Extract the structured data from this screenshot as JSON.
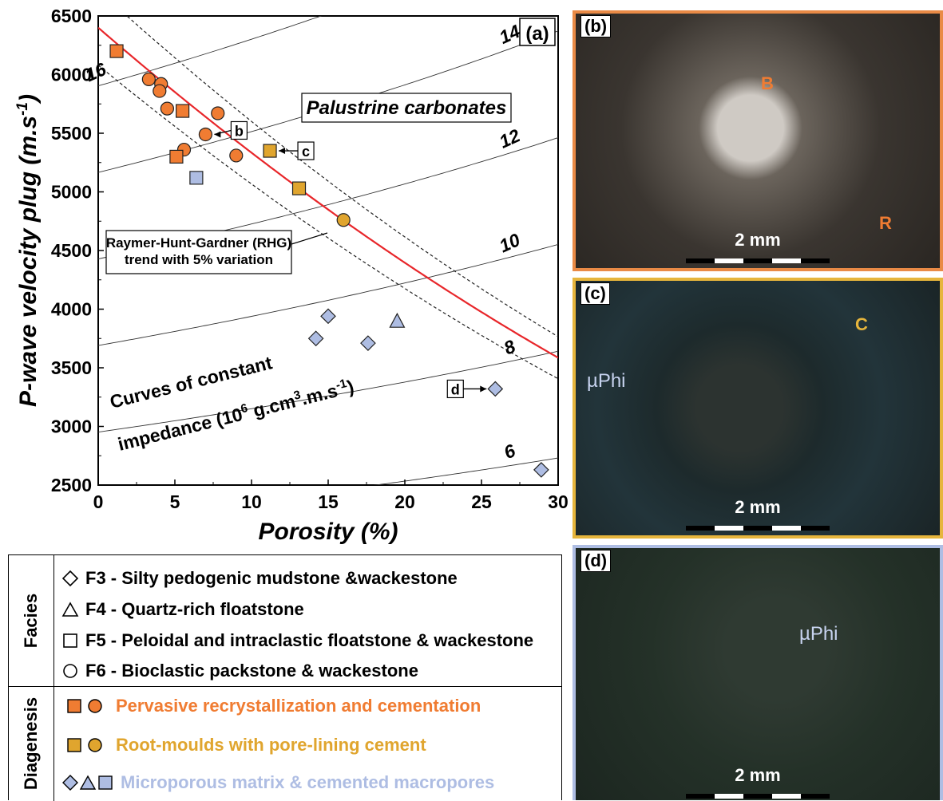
{
  "chart_data": {
    "type": "scatter",
    "xlabel": "Porosity (%)",
    "ylabel": "P-wave velocity plug (m.s-1)",
    "xlim": [
      0,
      30
    ],
    "ylim": [
      2500,
      6500
    ],
    "xticks": [
      "0",
      "5",
      "10",
      "15",
      "20",
      "25",
      "30"
    ],
    "yticks": [
      "2500",
      "3000",
      "3500",
      "4000",
      "4500",
      "5000",
      "5500",
      "6000",
      "6500"
    ],
    "grid": false,
    "panel_label": "(a)",
    "region_label": "Palustrine carbonates",
    "rhg_label": [
      "Raymer-Hunt-Gardner (RHG)",
      "trend with 5% variation"
    ],
    "impedance_label": [
      "Curves of constant",
      "impedance (10",
      "6",
      " g.cm",
      "3",
      ".m.s",
      "-1",
      ")"
    ],
    "impedance_curves": [
      {
        "label": "6",
        "value": 6
      },
      {
        "label": "8",
        "value": 8
      },
      {
        "label": "10",
        "value": 10
      },
      {
        "label": "12",
        "value": 12
      },
      {
        "label": "14",
        "value": 14
      },
      {
        "label": "16",
        "value": 16
      }
    ],
    "rhg_trend": {
      "matrix_velocity": 6400,
      "variation": 0.05,
      "color": "#e8262a"
    },
    "series": [
      {
        "name": "Pervasive recrystallization and cementation",
        "color": "#f07c32",
        "points": [
          {
            "shape": "square",
            "x": 1.2,
            "y": 6200
          },
          {
            "shape": "circle",
            "x": 3.3,
            "y": 5960
          },
          {
            "shape": "circle",
            "x": 4.1,
            "y": 5920
          },
          {
            "shape": "circle",
            "x": 4.0,
            "y": 5860
          },
          {
            "shape": "circle",
            "x": 4.5,
            "y": 5710
          },
          {
            "shape": "square",
            "x": 5.5,
            "y": 5690
          },
          {
            "shape": "circle",
            "x": 7.8,
            "y": 5670
          },
          {
            "shape": "circle",
            "x": 7.0,
            "y": 5490,
            "tag": "b"
          },
          {
            "shape": "circle",
            "x": 5.6,
            "y": 5360
          },
          {
            "shape": "square",
            "x": 5.1,
            "y": 5300
          },
          {
            "shape": "circle",
            "x": 9.0,
            "y": 5310
          }
        ]
      },
      {
        "name": "Root-moulds with pore-lining cement",
        "color": "#e0a52e",
        "points": [
          {
            "shape": "square",
            "x": 11.2,
            "y": 5350,
            "tag": "c"
          },
          {
            "shape": "square",
            "x": 13.1,
            "y": 5030
          },
          {
            "shape": "circle",
            "x": 16.0,
            "y": 4760
          }
        ]
      },
      {
        "name": "Microporous matrix & cemented macropores",
        "color": "#aebde3",
        "points": [
          {
            "shape": "square",
            "x": 6.4,
            "y": 5120
          },
          {
            "shape": "diamond",
            "x": 15.0,
            "y": 3940
          },
          {
            "shape": "diamond",
            "x": 14.2,
            "y": 3750
          },
          {
            "shape": "diamond",
            "x": 17.6,
            "y": 3710
          },
          {
            "shape": "triangle",
            "x": 19.5,
            "y": 3900
          },
          {
            "shape": "diamond",
            "x": 25.9,
            "y": 3320,
            "tag": "d"
          },
          {
            "shape": "diamond",
            "x": 28.9,
            "y": 2630
          }
        ]
      }
    ],
    "callouts": [
      {
        "tag": "b",
        "text": "b"
      },
      {
        "tag": "c",
        "text": "c"
      },
      {
        "tag": "d",
        "text": "d"
      }
    ]
  },
  "legend": {
    "facies_title": "Facies",
    "facies": [
      {
        "shape": "diamond",
        "text": "F3 - Silty pedogenic mudstone &wackestone"
      },
      {
        "shape": "triangle",
        "text": "F4 - Quartz-rich floatstone"
      },
      {
        "shape": "square",
        "text": "F5 - Peloidal and intraclastic floatstone & wackestone"
      },
      {
        "shape": "circle",
        "text": "F6 - Bioclastic packstone & wackestone"
      }
    ],
    "diagenesis_title": "Diagenesis",
    "diagenesis": [
      {
        "shapes": [
          "square",
          "circle"
        ],
        "color": "#f07c32",
        "text": "Pervasive recrystallization and cementation"
      },
      {
        "shapes": [
          "square",
          "circle"
        ],
        "color": "#e0a52e",
        "text": "Root-moulds with pore-lining cement"
      },
      {
        "shapes": [
          "diamond",
          "triangle",
          "square"
        ],
        "color": "#aebde3",
        "text": "Microporous matrix & cemented macropores"
      }
    ]
  },
  "micrographs": [
    {
      "label": "(b)",
      "scale": "2 mm",
      "border": "#e98a46",
      "annotations": [
        "B",
        "R"
      ]
    },
    {
      "label": "(c)",
      "scale": "2 mm",
      "border": "#e6b53c",
      "annotations": [
        "C",
        "µPhi"
      ]
    },
    {
      "label": "(d)",
      "scale": "2 mm",
      "border": "#aebde3",
      "annotations": [
        "µPhi"
      ]
    }
  ]
}
